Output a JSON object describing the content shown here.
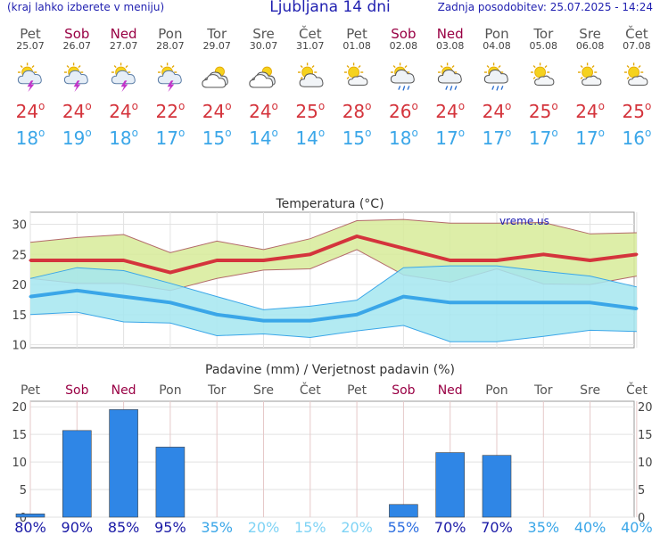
{
  "header": {
    "left_note": "(kraj lahko izberete v meniju)",
    "title": "Ljubljana 14 dni",
    "updated": "Zadnja posodobitev: 25.07.2025 - 14:24"
  },
  "days": [
    {
      "name": "Pet",
      "date": "25.07",
      "weekend": false,
      "icon": "sun-thunderstorm-icon",
      "tmax": "24",
      "tmin": "18"
    },
    {
      "name": "Sob",
      "date": "26.07",
      "weekend": true,
      "icon": "sun-thunderstorm-icon",
      "tmax": "24",
      "tmin": "19"
    },
    {
      "name": "Ned",
      "date": "27.07",
      "weekend": true,
      "icon": "sun-thunderstorm-icon",
      "tmax": "24",
      "tmin": "18"
    },
    {
      "name": "Pon",
      "date": "28.07",
      "weekend": false,
      "icon": "sun-thunderstorm-icon",
      "tmax": "22",
      "tmin": "17"
    },
    {
      "name": "Tor",
      "date": "29.07",
      "weekend": false,
      "icon": "cloudy-icon",
      "tmax": "24",
      "tmin": "15"
    },
    {
      "name": "Sre",
      "date": "30.07",
      "weekend": false,
      "icon": "cloudy-icon",
      "tmax": "24",
      "tmin": "14"
    },
    {
      "name": "Čet",
      "date": "31.07",
      "weekend": false,
      "icon": "sun-cloud-icon",
      "tmax": "25",
      "tmin": "14"
    },
    {
      "name": "Pet",
      "date": "01.08",
      "weekend": false,
      "icon": "partly-sunny-icon",
      "tmax": "28",
      "tmin": "15"
    },
    {
      "name": "Sob",
      "date": "02.08",
      "weekend": true,
      "icon": "sun-rain-icon",
      "tmax": "26",
      "tmin": "18"
    },
    {
      "name": "Ned",
      "date": "03.08",
      "weekend": true,
      "icon": "sun-rain-icon",
      "tmax": "24",
      "tmin": "17"
    },
    {
      "name": "Pon",
      "date": "04.08",
      "weekend": false,
      "icon": "sun-rain-icon",
      "tmax": "24",
      "tmin": "17"
    },
    {
      "name": "Tor",
      "date": "05.08",
      "weekend": false,
      "icon": "partly-sunny-icon",
      "tmax": "25",
      "tmin": "17"
    },
    {
      "name": "Sre",
      "date": "06.08",
      "weekend": false,
      "icon": "partly-sunny-icon",
      "tmax": "24",
      "tmin": "17"
    },
    {
      "name": "Čet",
      "date": "07.08",
      "weekend": false,
      "icon": "partly-sunny-icon",
      "tmax": "25",
      "tmin": "16"
    }
  ],
  "degree_symbol": "o",
  "chart_data": [
    {
      "type": "line",
      "title": "Temperatura (°C)",
      "watermark": "vreme.us",
      "x": [
        "Pet",
        "Sob",
        "Ned",
        "Pon",
        "Tor",
        "Sre",
        "Čet",
        "Pet",
        "Sob",
        "Ned",
        "Pon",
        "Tor",
        "Sre",
        "Čet"
      ],
      "ylim": [
        9.5,
        32
      ],
      "yticks": [
        10,
        15,
        20,
        25,
        30
      ],
      "grid": true,
      "series": [
        {
          "role": "max",
          "color": "#d4343c",
          "values": [
            24,
            24,
            24,
            22,
            24,
            24,
            25,
            28,
            26,
            24,
            24,
            25,
            24,
            25
          ]
        },
        {
          "role": "max-range-upper",
          "color": "#d7eb99",
          "values": [
            27,
            27.8,
            28.3,
            25.3,
            27.2,
            25.8,
            27.6,
            30.6,
            30.8,
            30.2,
            30.2,
            30.3,
            28.4,
            28.6
          ]
        },
        {
          "role": "max-range-lower",
          "values": [
            21,
            20.2,
            20.2,
            19,
            21,
            22.4,
            22.6,
            25.8,
            21.6,
            20.4,
            22.6,
            20.1,
            20,
            21.4
          ]
        },
        {
          "role": "min",
          "color": "#3aa6e8",
          "values": [
            18,
            19,
            18,
            17,
            15,
            14,
            14,
            15,
            18,
            17,
            17,
            17,
            17,
            16
          ]
        },
        {
          "role": "min-range-upper",
          "color": "#a5e6f0",
          "values": [
            21,
            22.8,
            22.3,
            20.2,
            18,
            15.8,
            16.4,
            17.4,
            22.8,
            23.1,
            23.1,
            22.2,
            21.4,
            19.6
          ]
        },
        {
          "role": "min-range-lower",
          "values": [
            15,
            15.4,
            13.8,
            13.6,
            11.5,
            11.8,
            11.2,
            12.3,
            13.2,
            10.5,
            10.5,
            11.4,
            12.4,
            12.2
          ]
        }
      ]
    },
    {
      "type": "bar",
      "title": "Padavine (mm) / Verjetnost padavin (%)",
      "categories": [
        "Pet",
        "Sob",
        "Ned",
        "Pon",
        "Tor",
        "Sre",
        "Čet",
        "Pet",
        "Sob",
        "Ned",
        "Pon",
        "Tor",
        "Sre",
        "Čet"
      ],
      "values": [
        0.6,
        15.7,
        19.5,
        12.7,
        0,
        0,
        0,
        0,
        2.3,
        11.7,
        11.2,
        0,
        0,
        0
      ],
      "probability": [
        "80%",
        "90%",
        "85%",
        "95%",
        "35%",
        "20%",
        "15%",
        "20%",
        "55%",
        "70%",
        "70%",
        "35%",
        "40%",
        "40%"
      ],
      "probability_colors": [
        "#1a1aa6",
        "#1a1aa6",
        "#1a1aa6",
        "#1a1aa6",
        "#3aa6e8",
        "#7fd3f5",
        "#7fd3f5",
        "#7fd3f5",
        "#2e6fe0",
        "#1a1aa6",
        "#1a1aa6",
        "#3aa6e8",
        "#3aa6e8",
        "#3aa6e8"
      ],
      "ylim": [
        0,
        21
      ],
      "yticks": [
        0,
        5,
        10,
        15,
        20
      ],
      "bar_color": "#2f86e6",
      "grid": true
    }
  ]
}
